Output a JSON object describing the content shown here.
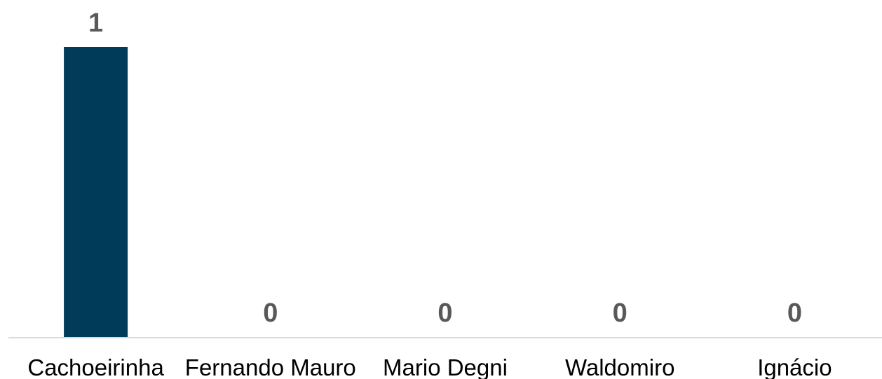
{
  "chart_data": {
    "type": "bar",
    "categories": [
      "Cachoeirinha",
      "Fernando Mauro",
      "Mario Degni",
      "Waldomiro",
      "Ignácio"
    ],
    "values": [
      1,
      0,
      0,
      0,
      0
    ],
    "data_labels": [
      "1",
      "0",
      "0",
      "0",
      "0"
    ],
    "title": "",
    "xlabel": "",
    "ylabel": "",
    "ylim": [
      0,
      1
    ],
    "grid": false,
    "legend": "none",
    "colors": {
      "bar": "#003b5a",
      "axis": "#d9d9d9",
      "data_label": "#595959",
      "tick_label": "#000000"
    }
  }
}
